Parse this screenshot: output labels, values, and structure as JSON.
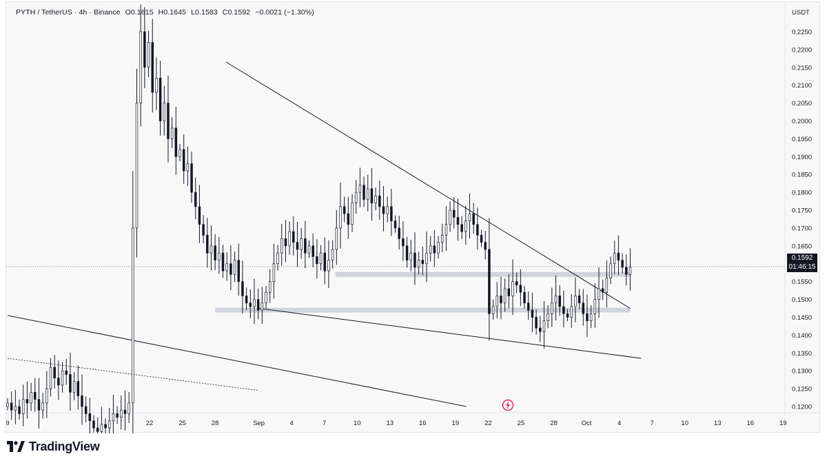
{
  "legend": {
    "symbol": "PYTH / TetherUS · 4h · Binance",
    "open": "O0.1615",
    "high": "H0.1645",
    "low": "L0.1583",
    "close": "C0.1592",
    "change": "−0.0021 (−1.30%)"
  },
  "currency_label": "USDT",
  "last_price": "0.1592",
  "countdown": "01:46:15",
  "brand": "TradingView",
  "colors": {
    "candle": "#131722",
    "background": "#f8f8f8",
    "zone": "#d1d4dc",
    "tag": "#131722",
    "bolt": "#e91e63"
  },
  "chart_data": {
    "type": "candlestick",
    "symbol": "PYTH/USDT",
    "interval": "4h",
    "exchange": "Binance",
    "ylim": [
      0.1175,
      0.2275
    ],
    "y_ticks": [
      "0.2250",
      "0.2200",
      "0.2150",
      "0.2100",
      "0.2050",
      "0.2000",
      "0.1950",
      "0.1900",
      "0.1850",
      "0.1800",
      "0.1750",
      "0.1700",
      "0.1650",
      "0.1600",
      "0.1550",
      "0.1500",
      "0.1450",
      "0.1400",
      "0.1350",
      "0.1300",
      "0.1250",
      "0.1200"
    ],
    "x_ticks": [
      "9",
      "22",
      "25",
      "28",
      "Sep",
      "4",
      "7",
      "10",
      "13",
      "16",
      "19",
      "22",
      "25",
      "28",
      "Oct",
      "4",
      "7",
      "10",
      "13",
      "16",
      "19",
      "22",
      "25",
      "28"
    ],
    "closes": [
      0.121,
      0.119,
      0.12,
      0.118,
      0.122,
      0.121,
      0.124,
      0.122,
      0.119,
      0.121,
      0.125,
      0.131,
      0.128,
      0.126,
      0.13,
      0.129,
      0.124,
      0.127,
      0.123,
      0.12,
      0.118,
      0.116,
      0.114,
      0.113,
      0.115,
      0.114,
      0.116,
      0.118,
      0.117,
      0.119,
      0.118,
      0.121,
      0.17,
      0.205,
      0.225,
      0.215,
      0.222,
      0.208,
      0.212,
      0.2,
      0.205,
      0.195,
      0.198,
      0.19,
      0.192,
      0.186,
      0.188,
      0.18,
      0.176,
      0.171,
      0.168,
      0.163,
      0.165,
      0.161,
      0.163,
      0.158,
      0.16,
      0.157,
      0.161,
      0.155,
      0.151,
      0.149,
      0.148,
      0.15,
      0.147,
      0.149,
      0.152,
      0.155,
      0.16,
      0.163,
      0.167,
      0.165,
      0.169,
      0.166,
      0.164,
      0.167,
      0.163,
      0.165,
      0.162,
      0.16,
      0.163,
      0.158,
      0.161,
      0.164,
      0.17,
      0.176,
      0.174,
      0.171,
      0.177,
      0.18,
      0.182,
      0.178,
      0.181,
      0.177,
      0.179,
      0.176,
      0.174,
      0.176,
      0.172,
      0.17,
      0.167,
      0.165,
      0.161,
      0.163,
      0.159,
      0.161,
      0.16,
      0.163,
      0.165,
      0.163,
      0.166,
      0.168,
      0.171,
      0.175,
      0.173,
      0.171,
      0.169,
      0.172,
      0.174,
      0.171,
      0.168,
      0.166,
      0.164,
      0.146,
      0.148,
      0.151,
      0.149,
      0.153,
      0.151,
      0.155,
      0.154,
      0.152,
      0.149,
      0.147,
      0.145,
      0.142,
      0.141,
      0.144,
      0.146,
      0.149,
      0.151,
      0.148,
      0.146,
      0.145,
      0.148,
      0.151,
      0.149,
      0.146,
      0.144,
      0.146,
      0.15,
      0.153,
      0.152,
      0.156,
      0.16,
      0.163,
      0.161,
      0.159,
      0.157,
      0.159
    ],
    "last_close": 0.1592,
    "annotations": [
      {
        "kind": "trendline",
        "from": [
          "Aug 29",
          0.2165
        ],
        "to": [
          "Oct 5",
          0.1475
        ]
      },
      {
        "kind": "trendline",
        "from": [
          "Sep 1",
          0.1475
        ],
        "to": [
          "Oct 6",
          0.1335
        ]
      },
      {
        "kind": "trendline",
        "from": [
          "Aug 9",
          0.1455
        ],
        "to": [
          "Sep 20",
          0.12
        ]
      },
      {
        "kind": "trendline_dotted",
        "from": [
          "Aug 9",
          0.1335
        ],
        "to": [
          "Sep 1",
          0.1245
        ]
      },
      {
        "kind": "zone",
        "price": 0.147,
        "from": "Aug 28",
        "to": "Oct 5"
      },
      {
        "kind": "zone",
        "price": 0.157,
        "from": "Sep 8",
        "to": "Oct 5"
      }
    ]
  }
}
